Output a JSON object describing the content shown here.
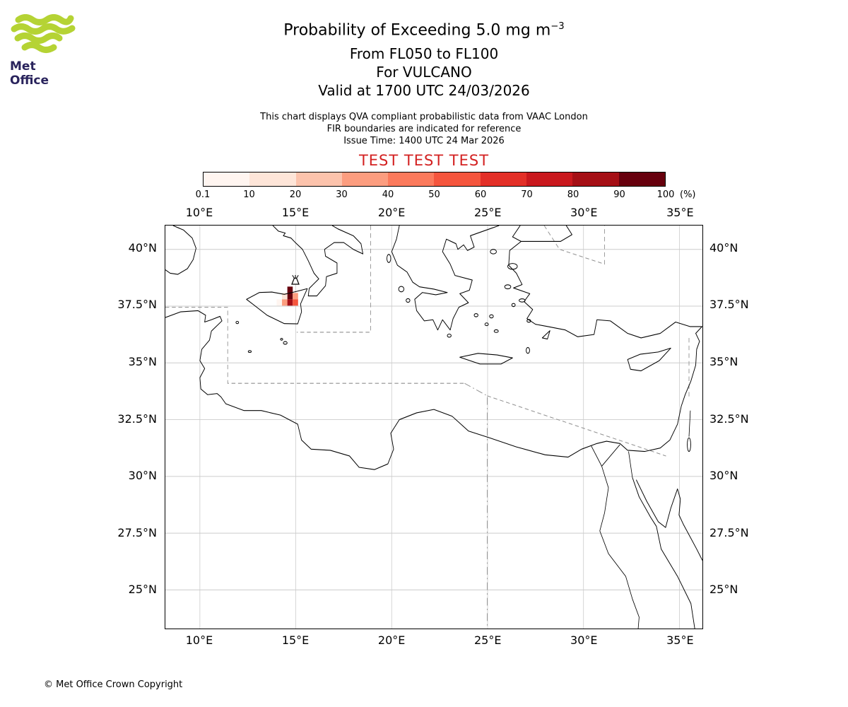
{
  "logo": {
    "text": "Met Office",
    "green": "#b5d334",
    "text_color": "#29235c"
  },
  "header": {
    "title": "Probability of Exceeding 5.0 mg m",
    "title_sup": "−3",
    "line2": "From FL050 to FL100",
    "line3": "For VULCANO",
    "line4": "Valid at 1700 UTC 24/03/2026",
    "note1": "This chart displays QVA compliant probabilistic data from VAAC London",
    "note2": "FIR boundaries are indicated for reference",
    "note3": "Issue Time: 1400 UTC 24 Mar 2026",
    "test_text": "TEST TEST TEST",
    "test_color": "#d32121"
  },
  "legend": {
    "tick_labels": [
      "0.1",
      "10",
      "20",
      "30",
      "40",
      "50",
      "60",
      "70",
      "80",
      "90",
      "100"
    ],
    "unit_label": "(%)"
  },
  "map": {
    "lon_ticks": [
      {
        "value": 10,
        "label": "10°E"
      },
      {
        "value": 15,
        "label": "15°E"
      },
      {
        "value": 20,
        "label": "20°E"
      },
      {
        "value": 25,
        "label": "25°E"
      },
      {
        "value": 30,
        "label": "30°E"
      },
      {
        "value": 35,
        "label": "35°E"
      }
    ],
    "lat_ticks": [
      {
        "value": 40,
        "label": "40°N"
      },
      {
        "value": 37.5,
        "label": "37.5°N"
      },
      {
        "value": 35,
        "label": "35°N"
      },
      {
        "value": 32.5,
        "label": "32.5°N"
      },
      {
        "value": 30,
        "label": "30°N"
      },
      {
        "value": 27.5,
        "label": "27.5°N"
      },
      {
        "value": 25,
        "label": "25°N"
      }
    ],
    "grid_color": "#cccccc",
    "fir_color": "#8f8f8f",
    "coast_color": "#000000"
  },
  "chart_data": {
    "type": "heatmap",
    "title": "Probability of Exceeding 5.0 mg m⁻³",
    "flight_levels": "FL050 to FL100",
    "volcano_name": "VULCANO",
    "valid_time": "1700 UTC 24/03/2026",
    "issue_time": "1400 UTC 24 Mar 2026",
    "unit": "%",
    "bins": [
      0.1,
      10,
      20,
      30,
      40,
      50,
      60,
      70,
      80,
      90,
      100
    ],
    "colors": [
      "#fff5f0",
      "#fee5d8",
      "#fcc3ac",
      "#fc9d7f",
      "#fb7a5c",
      "#f5553d",
      "#e32f27",
      "#c9181d",
      "#a50f15",
      "#67000d"
    ],
    "lon_range": [
      8.2,
      36.2
    ],
    "lat_range": [
      23.3,
      41.05
    ],
    "cell_size_deg": 0.28,
    "volcano_location": {
      "lon": 14.96,
      "lat": 38.5
    },
    "cells": [
      {
        "lon": 14.56,
        "lat": 38.08,
        "value": 100
      },
      {
        "lon": 14.56,
        "lat": 37.8,
        "value": 100
      },
      {
        "lon": 14.84,
        "lat": 37.8,
        "value": 40
      },
      {
        "lon": 14.28,
        "lat": 37.8,
        "value": 20
      },
      {
        "lon": 14.0,
        "lat": 37.52,
        "value": 10
      },
      {
        "lon": 14.28,
        "lat": 37.52,
        "value": 40
      },
      {
        "lon": 14.56,
        "lat": 37.52,
        "value": 90
      },
      {
        "lon": 14.84,
        "lat": 37.52,
        "value": 60
      }
    ]
  },
  "footer": {
    "copyright": "© Met Office Crown Copyright"
  }
}
